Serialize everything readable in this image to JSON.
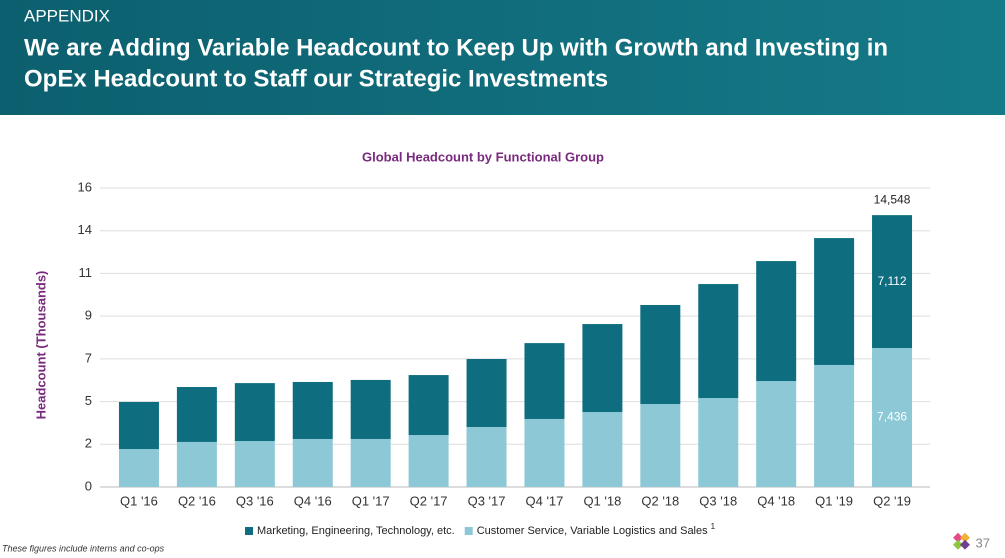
{
  "header": {
    "section": "APPENDIX",
    "title_lines": [
      "We are Adding Variable Headcount to Keep Up with Growth and Investing in",
      "OpEx Headcount to Staff our Strategic Investments"
    ]
  },
  "chart_data": {
    "type": "stacked_bar",
    "title": "Global Headcount by Functional Group",
    "y_axis_label": "Headcount (Thousands)",
    "categories": [
      "Q1 '16",
      "Q2 '16",
      "Q3 '16",
      "Q4 '16",
      "Q1 '17",
      "Q2 '17",
      "Q3 '17",
      "Q4 '17",
      "Q1 '18",
      "Q2 '18",
      "Q3 '18",
      "Q4 '18",
      "Q1 '19",
      "Q2 '19"
    ],
    "series": [
      {
        "name": "Customer Service, Variable Logistics and Sales",
        "color": "#8cc8d6",
        "values": [
          2.03,
          2.41,
          2.46,
          2.57,
          2.57,
          2.78,
          3.21,
          3.64,
          4.01,
          4.44,
          4.76,
          5.67,
          6.53,
          7.436
        ],
        "value_labels": [
          null,
          null,
          null,
          null,
          null,
          null,
          null,
          null,
          null,
          null,
          null,
          null,
          null,
          "7,436"
        ]
      },
      {
        "name": "Marketing, Engineering, Technology, etc.",
        "color": "#0e6e80",
        "values": [
          2.52,
          2.94,
          3.1,
          3.05,
          3.16,
          3.21,
          3.64,
          4.06,
          4.71,
          5.3,
          6.1,
          6.42,
          6.79,
          7.112
        ],
        "value_labels": [
          null,
          null,
          null,
          null,
          null,
          null,
          null,
          null,
          null,
          null,
          null,
          null,
          null,
          "7,112"
        ]
      }
    ],
    "total_value_labels": [
      null,
      null,
      null,
      null,
      null,
      null,
      null,
      null,
      null,
      null,
      null,
      null,
      null,
      "14,548"
    ],
    "legend_footnote_marker": "1",
    "ylim": [
      0,
      16
    ],
    "yticks": [
      0,
      {
        "value": 2.286,
        "label": "2"
      },
      {
        "value": 4.571,
        "label": "5"
      },
      {
        "value": 6.857,
        "label": "7"
      },
      {
        "value": 9.143,
        "label": "9"
      },
      {
        "value": 11.429,
        "label": "11"
      },
      {
        "value": 13.714,
        "label": "14"
      },
      16
    ],
    "grid": true,
    "legend": "bottom"
  },
  "footer": {
    "note": "These figures include interns and co-ops",
    "page_number": "37"
  }
}
